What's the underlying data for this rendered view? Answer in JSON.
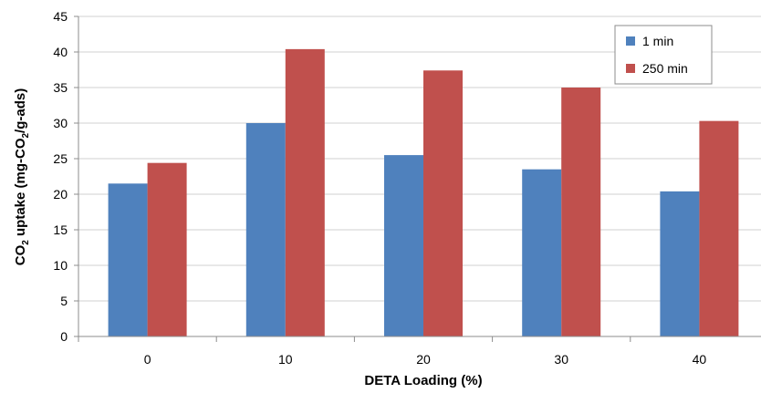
{
  "chart_data": {
    "type": "bar",
    "xlabel": "DETA Loading (%)",
    "ylabel": {
      "parts": [
        "CO",
        "2",
        " uptake (mg-CO",
        "2",
        "/g-ads)"
      ]
    },
    "categories": [
      "0",
      "10",
      "20",
      "30",
      "40"
    ],
    "series": [
      {
        "name": "1 min",
        "color": "#4f81bd",
        "values": [
          21.5,
          30.0,
          25.5,
          23.5,
          20.4
        ]
      },
      {
        "name": "250 min",
        "color": "#c0504d",
        "values": [
          24.4,
          40.4,
          37.4,
          35.0,
          30.3
        ]
      }
    ],
    "ylim": [
      0,
      45
    ],
    "yticks": [
      "0",
      "5",
      "10",
      "15",
      "20",
      "25",
      "30",
      "35",
      "40",
      "45"
    ],
    "grid": true,
    "legend_position": "top-right"
  }
}
